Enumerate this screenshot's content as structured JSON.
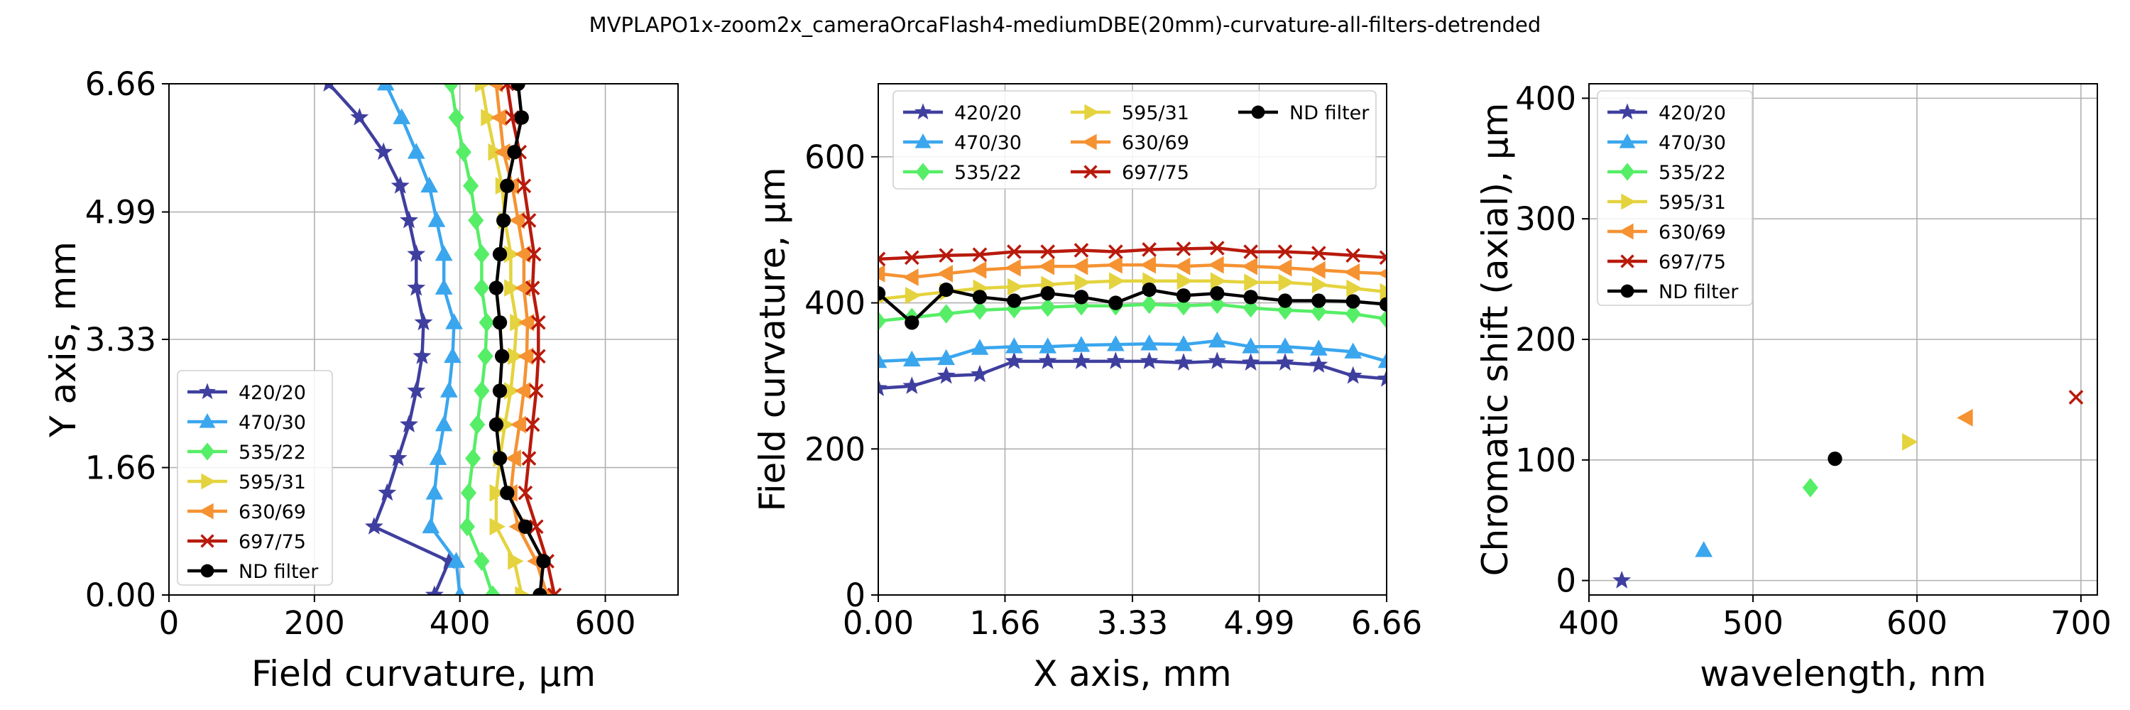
{
  "figure_title": "MVPLAPO1x-zoom2x_cameraOrcaFlash4-mediumDBE(20mm)-curvature-all-filters-detrended",
  "series_styles": [
    {
      "name": "420/20",
      "color": "#3f3f9f",
      "marker": "star"
    },
    {
      "name": "470/30",
      "color": "#3aa6ee",
      "marker": "triangle-up"
    },
    {
      "name": "535/22",
      "color": "#55ee66",
      "marker": "diamond"
    },
    {
      "name": "595/31",
      "color": "#e4d33e",
      "marker": "triangle-right"
    },
    {
      "name": "630/69",
      "color": "#f59232",
      "marker": "triangle-left"
    },
    {
      "name": "697/75",
      "color": "#b81a0c",
      "marker": "x"
    },
    {
      "name": "ND filter",
      "color": "#000000",
      "marker": "circle"
    }
  ],
  "chart_data": [
    {
      "type": "line",
      "title": "",
      "xlabel": "Field curvature, µm",
      "ylabel": "Y axis, mm",
      "xlim": [
        0,
        700
      ],
      "ylim": [
        0,
        6.66
      ],
      "xticks": [
        "0",
        "200",
        "400",
        "600"
      ],
      "yticks": [
        "0.00",
        "1.66",
        "3.33",
        "4.99",
        "6.66"
      ],
      "grid": true,
      "legend": "lower-left",
      "orientation": "vertical",
      "y": [
        0.0,
        0.44,
        0.89,
        1.33,
        1.78,
        2.22,
        2.66,
        3.11,
        3.55,
        4.0,
        4.44,
        4.88,
        5.33,
        5.77,
        6.22,
        6.66
      ],
      "series": [
        {
          "name": "420/20",
          "values": [
            365,
            385,
            282,
            300,
            315,
            330,
            340,
            348,
            350,
            340,
            340,
            330,
            318,
            295,
            262,
            220
          ]
        },
        {
          "name": "470/30",
          "values": [
            400,
            395,
            360,
            365,
            370,
            378,
            385,
            390,
            392,
            378,
            378,
            368,
            358,
            340,
            320,
            298
          ]
        },
        {
          "name": "535/22",
          "values": [
            445,
            430,
            410,
            412,
            418,
            424,
            430,
            435,
            437,
            430,
            430,
            422,
            415,
            405,
            395,
            388
          ]
        },
        {
          "name": "595/31",
          "values": [
            485,
            475,
            450,
            450,
            455,
            462,
            470,
            475,
            478,
            470,
            470,
            462,
            458,
            448,
            438,
            430
          ]
        },
        {
          "name": "630/69",
          "values": [
            520,
            505,
            480,
            470,
            475,
            482,
            488,
            492,
            493,
            488,
            488,
            480,
            472,
            460,
            455,
            450
          ]
        },
        {
          "name": "697/75",
          "values": [
            530,
            520,
            505,
            490,
            495,
            500,
            505,
            508,
            508,
            500,
            502,
            495,
            488,
            482,
            472,
            465
          ]
        },
        {
          "name": "ND filter",
          "values": [
            510,
            515,
            490,
            465,
            455,
            450,
            455,
            458,
            455,
            450,
            455,
            460,
            465,
            475,
            485,
            480
          ]
        }
      ]
    },
    {
      "type": "line",
      "title": "",
      "xlabel": "X axis, mm",
      "ylabel": "Field curvature, µm",
      "xlim": [
        0,
        6.66
      ],
      "ylim": [
        0,
        700
      ],
      "xticks": [
        "0.00",
        "1.66",
        "3.33",
        "4.99",
        "6.66"
      ],
      "yticks": [
        "0",
        "200",
        "400",
        "600"
      ],
      "grid": true,
      "legend": "top",
      "legend_columns": 3,
      "x": [
        0.0,
        0.44,
        0.89,
        1.33,
        1.78,
        2.22,
        2.66,
        3.11,
        3.55,
        4.0,
        4.44,
        4.88,
        5.33,
        5.77,
        6.22,
        6.66
      ],
      "series": [
        {
          "name": "420/20",
          "values": [
            283,
            286,
            300,
            302,
            320,
            320,
            320,
            320,
            320,
            318,
            320,
            318,
            318,
            315,
            300,
            296
          ]
        },
        {
          "name": "470/30",
          "values": [
            320,
            322,
            324,
            338,
            340,
            340,
            342,
            343,
            344,
            343,
            348,
            340,
            340,
            337,
            333,
            320
          ]
        },
        {
          "name": "535/22",
          "values": [
            375,
            380,
            385,
            390,
            392,
            394,
            396,
            396,
            398,
            396,
            398,
            393,
            390,
            388,
            385,
            378
          ]
        },
        {
          "name": "595/31",
          "values": [
            405,
            410,
            415,
            420,
            422,
            425,
            428,
            430,
            430,
            430,
            430,
            428,
            428,
            425,
            420,
            415
          ]
        },
        {
          "name": "630/69",
          "values": [
            440,
            435,
            440,
            445,
            448,
            450,
            450,
            452,
            452,
            450,
            452,
            450,
            448,
            445,
            442,
            440
          ]
        },
        {
          "name": "697/75",
          "values": [
            460,
            462,
            465,
            466,
            470,
            470,
            472,
            470,
            473,
            474,
            475,
            470,
            470,
            468,
            465,
            462
          ]
        },
        {
          "name": "ND filter",
          "values": [
            413,
            373,
            418,
            408,
            403,
            413,
            408,
            400,
            418,
            410,
            413,
            408,
            403,
            403,
            402,
            398
          ]
        }
      ]
    },
    {
      "type": "scatter",
      "title": "",
      "xlabel": "wavelength, nm",
      "ylabel": "Chromatic shift (axial), µm",
      "xlim": [
        400,
        710
      ],
      "ylim": [
        -12,
        412
      ],
      "xticks": [
        "400",
        "500",
        "600",
        "700"
      ],
      "yticks": [
        "0",
        "100",
        "200",
        "300",
        "400"
      ],
      "grid": true,
      "legend": "top-left",
      "series": [
        {
          "name": "420/20",
          "x": 420,
          "y": 0
        },
        {
          "name": "470/30",
          "x": 470,
          "y": 25
        },
        {
          "name": "535/22",
          "x": 535,
          "y": 77
        },
        {
          "name": "595/31",
          "x": 595,
          "y": 115
        },
        {
          "name": "630/69",
          "x": 630,
          "y": 135
        },
        {
          "name": "697/75",
          "x": 697,
          "y": 152
        },
        {
          "name": "ND filter",
          "x": 550,
          "y": 101
        }
      ]
    }
  ]
}
